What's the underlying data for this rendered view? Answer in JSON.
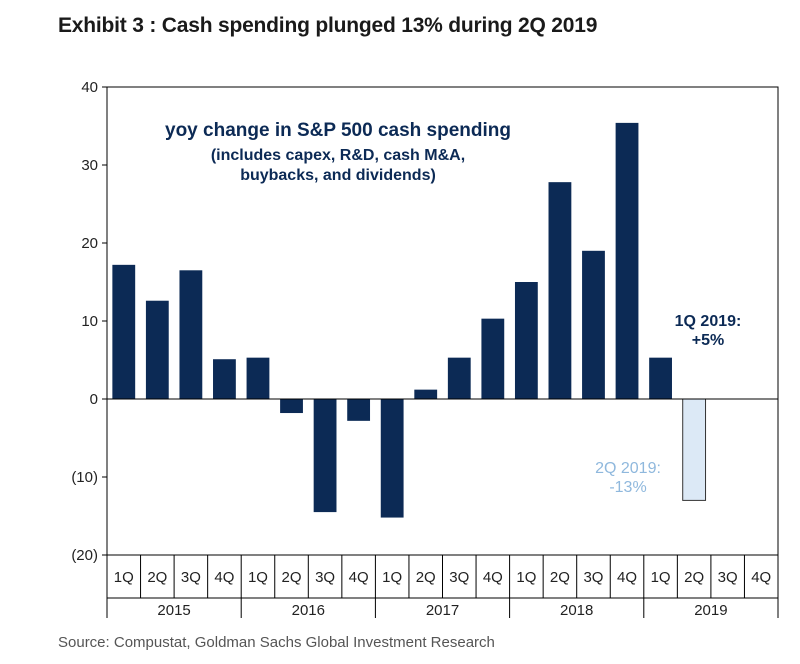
{
  "title": "Exhibit 3 : Cash spending plunged 13% during 2Q 2019",
  "source": "Source: Compustat, Goldman Sachs Global Investment Research",
  "colors": {
    "bar": "#0c2a55",
    "bar_highlight": "#dce9f6",
    "bar_highlight_stroke": "#333333",
    "annotation_main": "#0c2a55",
    "annotation_muted": "#8fb8dd",
    "axis": "#000000"
  },
  "chart_data": {
    "type": "bar",
    "title": "yoy change in S&P 500 cash spending",
    "subtitle_lines": [
      "(includes capex, R&D, cash M&A,",
      "buybacks,  and dividends)"
    ],
    "xlabel": "",
    "ylabel": "",
    "ylim": [
      -20,
      40
    ],
    "yticks": [
      -20,
      -10,
      0,
      10,
      20,
      30,
      40
    ],
    "ytick_labels": [
      "(20)",
      "(10)",
      "0",
      "10",
      "20",
      "30",
      "40"
    ],
    "categories": [
      "1Q",
      "2Q",
      "3Q",
      "4Q",
      "1Q",
      "2Q",
      "3Q",
      "4Q",
      "1Q",
      "2Q",
      "3Q",
      "4Q",
      "1Q",
      "2Q",
      "3Q",
      "4Q",
      "1Q",
      "2Q",
      "3Q",
      "4Q"
    ],
    "year_groups": [
      {
        "label": "2015",
        "span": 4
      },
      {
        "label": "2016",
        "span": 4
      },
      {
        "label": "2017",
        "span": 4
      },
      {
        "label": "2018",
        "span": 4
      },
      {
        "label": "2019",
        "span": 4
      }
    ],
    "values": [
      17.2,
      12.6,
      16.5,
      5.1,
      5.3,
      -1.8,
      -14.5,
      -2.8,
      -15.2,
      1.2,
      5.3,
      10.3,
      15.0,
      27.8,
      19.0,
      35.4,
      5.3,
      -13.0,
      null,
      null
    ],
    "highlight_index": 17,
    "annotations": [
      {
        "lines": [
          "1Q 2019:",
          "+5%"
        ],
        "style": "main"
      },
      {
        "lines": [
          "2Q 2019:",
          "-13%"
        ],
        "style": "muted"
      }
    ],
    "grid": false,
    "legend": "none"
  }
}
